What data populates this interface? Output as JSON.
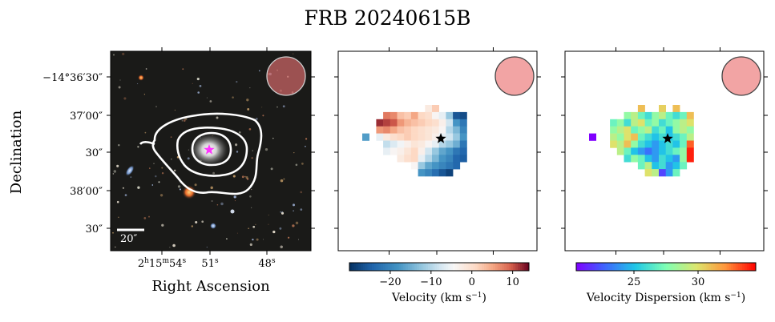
{
  "title": "FRB 20240615B",
  "colors": {
    "contour": "#ffffff",
    "star_optical": "#ff33ff",
    "star_maps": "#000000",
    "beam_fill": "#f19a9a",
    "beam_edge": "#444444",
    "sky_background": "#1a1a18"
  },
  "chart_data": [
    {
      "type": "heatmap",
      "name": "optical-image",
      "xlabel": "Right Ascension",
      "ylabel": "Declination",
      "x_tick_labels": [
        "2h15m54s",
        "51s",
        "48s"
      ],
      "x_ticks": [
        {
          "main": "2",
          "sup1": "h",
          "mid": "15",
          "sup2": "m",
          "end": "54",
          "sup3": "s"
        },
        {
          "main": "51",
          "sup1": "s"
        },
        {
          "main": "48",
          "sup1": "s"
        }
      ],
      "y_tick_labels": [
        "−14°36′30″",
        "37′00″",
        "30″",
        "38′00″",
        "30″"
      ],
      "scale_bar_label": "20″",
      "contours": 3,
      "beam": true
    },
    {
      "type": "heatmap",
      "name": "velocity-map",
      "colorbar_label": "Velocity (km s⁻¹)",
      "colorbar_label_main": "Velocity (km s",
      "colorbar_label_sup": "−1",
      "colorbar_label_end": ")",
      "colormap": "RdBu_r",
      "clim": [
        -30,
        14
      ],
      "colorbar_ticks": [
        -20,
        -10,
        0,
        10
      ],
      "colorbar_tick_labels": [
        "−20",
        "−10",
        "0",
        "10"
      ],
      "grid_rows": 11,
      "grid_cols": 17,
      "star_cell": [
        11,
        4
      ],
      "cells": [
        [
          9,
          0,
          -2
        ],
        [
          10,
          0,
          2
        ],
        [
          3,
          1,
          8
        ],
        [
          4,
          1,
          7
        ],
        [
          5,
          1,
          3
        ],
        [
          6,
          1,
          2
        ],
        [
          7,
          1,
          5
        ],
        [
          8,
          1,
          1
        ],
        [
          9,
          1,
          0
        ],
        [
          10,
          1,
          -4
        ],
        [
          11,
          1,
          -6
        ],
        [
          12,
          1,
          -12
        ],
        [
          13,
          1,
          -26
        ],
        [
          14,
          1,
          -27
        ],
        [
          2,
          2,
          12
        ],
        [
          3,
          2,
          11
        ],
        [
          4,
          2,
          10
        ],
        [
          5,
          2,
          6
        ],
        [
          6,
          2,
          4
        ],
        [
          7,
          2,
          3
        ],
        [
          8,
          2,
          2
        ],
        [
          9,
          2,
          1
        ],
        [
          10,
          2,
          0
        ],
        [
          11,
          2,
          -3
        ],
        [
          12,
          2,
          -8
        ],
        [
          13,
          2,
          -18
        ],
        [
          14,
          2,
          -22
        ],
        [
          2,
          3,
          6
        ],
        [
          3,
          3,
          7
        ],
        [
          4,
          3,
          5
        ],
        [
          5,
          3,
          3
        ],
        [
          6,
          3,
          2
        ],
        [
          7,
          3,
          1
        ],
        [
          8,
          3,
          0
        ],
        [
          9,
          3,
          -1
        ],
        [
          10,
          3,
          -2
        ],
        [
          11,
          3,
          -4
        ],
        [
          12,
          3,
          -10
        ],
        [
          13,
          3,
          -14
        ],
        [
          14,
          3,
          -20
        ],
        [
          0,
          4,
          -17
        ],
        [
          2,
          4,
          -6
        ],
        [
          3,
          4,
          -2
        ],
        [
          4,
          4,
          0
        ],
        [
          5,
          4,
          1
        ],
        [
          6,
          4,
          2
        ],
        [
          7,
          4,
          1
        ],
        [
          8,
          4,
          0
        ],
        [
          9,
          4,
          -1
        ],
        [
          10,
          4,
          -3
        ],
        [
          11,
          4,
          -6
        ],
        [
          12,
          4,
          -8
        ],
        [
          13,
          4,
          -12
        ],
        [
          14,
          4,
          -18
        ],
        [
          3,
          5,
          -9
        ],
        [
          4,
          5,
          -7
        ],
        [
          5,
          5,
          -5
        ],
        [
          6,
          5,
          -3
        ],
        [
          7,
          5,
          -1
        ],
        [
          8,
          5,
          -2
        ],
        [
          9,
          5,
          -4
        ],
        [
          10,
          5,
          -6
        ],
        [
          11,
          5,
          -10
        ],
        [
          12,
          5,
          -12
        ],
        [
          13,
          5,
          -15
        ],
        [
          14,
          5,
          -22
        ],
        [
          3,
          6,
          -6
        ],
        [
          4,
          6,
          -4
        ],
        [
          5,
          6,
          -3
        ],
        [
          6,
          6,
          -1
        ],
        [
          7,
          6,
          1
        ],
        [
          8,
          6,
          -3
        ],
        [
          9,
          6,
          -8
        ],
        [
          10,
          6,
          -12
        ],
        [
          11,
          6,
          -16
        ],
        [
          12,
          6,
          -18
        ],
        [
          13,
          6,
          -22
        ],
        [
          14,
          6,
          -24
        ],
        [
          5,
          7,
          -2
        ],
        [
          6,
          7,
          0
        ],
        [
          7,
          7,
          1
        ],
        [
          8,
          7,
          -6
        ],
        [
          9,
          7,
          -10
        ],
        [
          10,
          7,
          -14
        ],
        [
          11,
          7,
          -18
        ],
        [
          12,
          7,
          -20
        ],
        [
          13,
          7,
          -24
        ],
        [
          14,
          7,
          -25
        ],
        [
          7,
          8,
          -4
        ],
        [
          8,
          8,
          -12
        ],
        [
          9,
          8,
          -16
        ],
        [
          10,
          8,
          -18
        ],
        [
          11,
          8,
          -20
        ],
        [
          12,
          8,
          -22
        ],
        [
          13,
          8,
          -24
        ],
        [
          8,
          9,
          -18
        ],
        [
          9,
          9,
          -20
        ],
        [
          10,
          9,
          -23
        ],
        [
          11,
          9,
          -26
        ],
        [
          12,
          9,
          -28
        ]
      ],
      "beam": true
    },
    {
      "type": "heatmap",
      "name": "dispersion-map",
      "colorbar_label": "Velocity Dispersion (km s⁻¹)",
      "colorbar_label_main": "Velocity Dispersion (km s",
      "colorbar_label_sup": "−1",
      "colorbar_label_end": ")",
      "colormap": "rainbow",
      "clim": [
        20.5,
        34.5
      ],
      "colorbar_ticks": [
        25,
        30
      ],
      "colorbar_tick_labels": [
        "25",
        "30"
      ],
      "grid_rows": 11,
      "grid_cols": 17,
      "star_cell": [
        11,
        4
      ],
      "cells": [
        [
          7,
          0,
          31
        ],
        [
          10,
          0,
          30.5
        ],
        [
          12,
          0,
          31
        ],
        [
          5,
          1,
          28
        ],
        [
          6,
          1,
          29
        ],
        [
          7,
          1,
          27
        ],
        [
          8,
          1,
          26
        ],
        [
          9,
          1,
          28
        ],
        [
          10,
          1,
          29
        ],
        [
          11,
          1,
          27
        ],
        [
          12,
          1,
          26
        ],
        [
          13,
          1,
          27
        ],
        [
          14,
          1,
          31
        ],
        [
          3,
          2,
          27
        ],
        [
          4,
          2,
          28
        ],
        [
          5,
          2,
          26
        ],
        [
          6,
          2,
          29
        ],
        [
          7,
          2,
          30
        ],
        [
          8,
          2,
          27
        ],
        [
          9,
          2,
          28
        ],
        [
          10,
          2,
          26
        ],
        [
          11,
          2,
          27
        ],
        [
          12,
          2,
          28
        ],
        [
          13,
          2,
          29
        ],
        [
          14,
          2,
          30
        ],
        [
          3,
          3,
          28
        ],
        [
          4,
          3,
          29
        ],
        [
          5,
          3,
          30
        ],
        [
          6,
          3,
          27
        ],
        [
          7,
          3,
          28
        ],
        [
          8,
          3,
          29
        ],
        [
          9,
          3,
          26
        ],
        [
          10,
          3,
          27
        ],
        [
          11,
          3,
          25
        ],
        [
          12,
          3,
          28
        ],
        [
          13,
          3,
          29
        ],
        [
          14,
          3,
          28
        ],
        [
          0,
          4,
          20.5
        ],
        [
          3,
          4,
          29
        ],
        [
          4,
          4,
          28
        ],
        [
          5,
          4,
          30
        ],
        [
          6,
          4,
          31
        ],
        [
          7,
          4,
          27
        ],
        [
          8,
          4,
          26
        ],
        [
          9,
          4,
          25
        ],
        [
          10,
          4,
          26
        ],
        [
          11,
          4,
          25
        ],
        [
          12,
          4,
          26
        ],
        [
          13,
          4,
          27
        ],
        [
          14,
          4,
          29
        ],
        [
          3,
          5,
          30
        ],
        [
          4,
          5,
          29
        ],
        [
          5,
          5,
          31
        ],
        [
          6,
          5,
          28
        ],
        [
          7,
          5,
          26
        ],
        [
          8,
          5,
          25
        ],
        [
          9,
          5,
          24
        ],
        [
          10,
          5,
          25
        ],
        [
          11,
          5,
          26
        ],
        [
          12,
          5,
          25
        ],
        [
          13,
          5,
          27
        ],
        [
          14,
          5,
          33
        ],
        [
          4,
          6,
          29
        ],
        [
          5,
          6,
          27
        ],
        [
          6,
          6,
          25
        ],
        [
          7,
          6,
          24
        ],
        [
          8,
          6,
          23
        ],
        [
          9,
          6,
          24
        ],
        [
          10,
          6,
          25
        ],
        [
          11,
          6,
          26
        ],
        [
          12,
          6,
          27
        ],
        [
          13,
          6,
          28
        ],
        [
          14,
          6,
          34
        ],
        [
          5,
          7,
          26
        ],
        [
          6,
          7,
          28
        ],
        [
          7,
          7,
          27
        ],
        [
          8,
          7,
          25
        ],
        [
          9,
          7,
          24
        ],
        [
          10,
          7,
          26
        ],
        [
          11,
          7,
          25
        ],
        [
          12,
          7,
          24
        ],
        [
          13,
          7,
          28
        ],
        [
          14,
          7,
          34
        ],
        [
          7,
          8,
          27
        ],
        [
          8,
          8,
          29
        ],
        [
          9,
          8,
          25
        ],
        [
          10,
          8,
          26
        ],
        [
          11,
          8,
          24
        ],
        [
          12,
          8,
          25
        ],
        [
          13,
          8,
          27
        ],
        [
          8,
          9,
          30
        ],
        [
          9,
          9,
          29
        ],
        [
          10,
          9,
          22
        ],
        [
          11,
          9,
          24
        ],
        [
          12,
          9,
          27
        ]
      ],
      "beam": true
    }
  ]
}
